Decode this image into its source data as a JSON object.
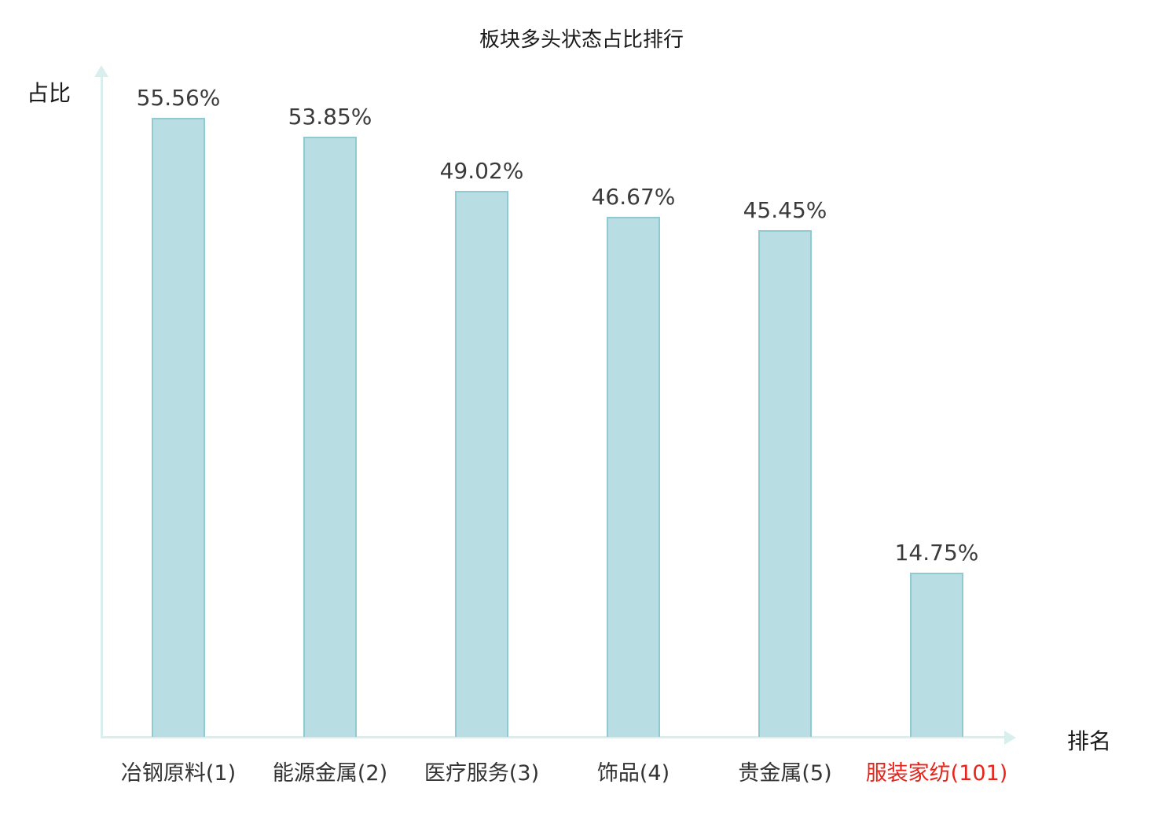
{
  "chart_data": {
    "type": "bar",
    "title": "板块多头状态占比排行",
    "ylabel": "占比",
    "xlabel": "排名",
    "categories": [
      "冶钢原料(1)",
      "能源金属(2)",
      "医疗服务(3)",
      "饰品(4)",
      "贵金属(5)",
      "服装家纺(101)"
    ],
    "values": [
      55.56,
      53.85,
      49.02,
      46.67,
      45.45,
      14.75
    ],
    "value_labels": [
      "55.56%",
      "53.85%",
      "49.02%",
      "46.67%",
      "45.45%",
      "14.75%"
    ],
    "highlight_index": 5,
    "ylim": [
      0,
      59.5
    ],
    "grid": false,
    "legend": "none",
    "colors": {
      "bar_fill": "#b8dde2",
      "bar_border": "#8fc9d1",
      "axis": "#d9efee",
      "text": "#1a1a1a",
      "value_text": "#3a3a3a",
      "category_text": "#333333",
      "highlight_text": "#e8231a"
    }
  }
}
